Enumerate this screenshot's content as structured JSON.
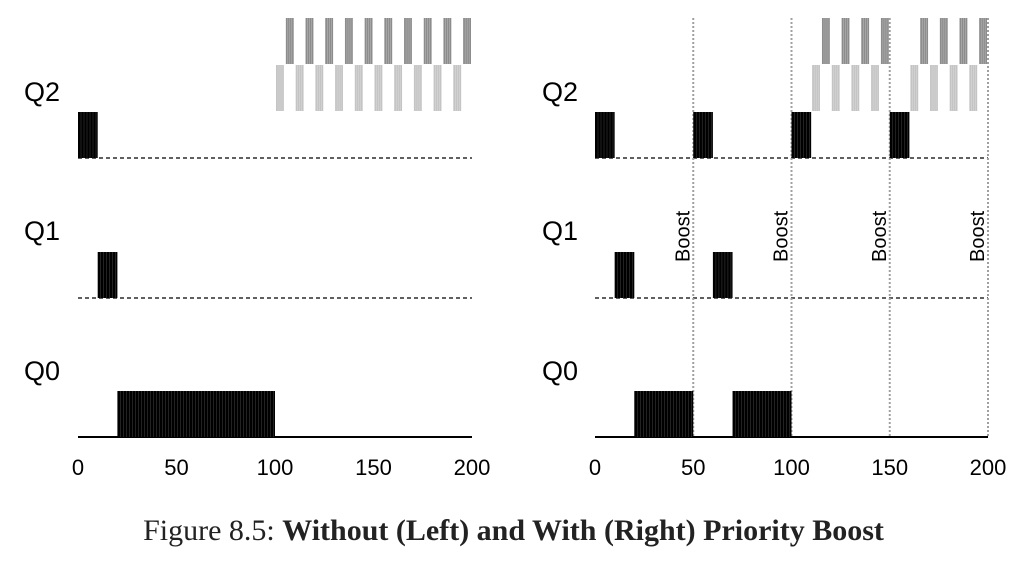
{
  "caption": {
    "prefix": "Figure 8.5: ",
    "title": "Without (Left) and With (Right) Priority Boost"
  },
  "queues": [
    "Q2",
    "Q1",
    "Q0"
  ],
  "axis": {
    "ticks": [
      0,
      50,
      100,
      150,
      200
    ],
    "range": [
      0,
      200
    ]
  },
  "boost_label": "Boost",
  "colors": {
    "long_job": "#000000",
    "dark_gray": "#8c8c8c",
    "light_gray": "#c4c4c4",
    "boost_line": "#a0a0a0"
  },
  "panels": [
    {
      "id": "left",
      "boosts": [],
      "long_job": [
        {
          "queue": "Q2",
          "start": 0,
          "end": 10
        },
        {
          "queue": "Q1",
          "start": 10,
          "end": 20
        },
        {
          "queue": "Q0",
          "start": 20,
          "end": 100
        }
      ],
      "short_jobs": {
        "start": 100,
        "end": 200,
        "slice": 5
      }
    },
    {
      "id": "right",
      "boosts": [
        50,
        100,
        150,
        200
      ],
      "long_job": [
        {
          "queue": "Q2",
          "start": 0,
          "end": 10
        },
        {
          "queue": "Q1",
          "start": 10,
          "end": 20
        },
        {
          "queue": "Q0",
          "start": 20,
          "end": 50
        },
        {
          "queue": "Q2",
          "start": 50,
          "end": 60
        },
        {
          "queue": "Q1",
          "start": 60,
          "end": 70
        },
        {
          "queue": "Q0",
          "start": 70,
          "end": 100
        },
        {
          "queue": "Q2",
          "start": 100,
          "end": 110
        },
        {
          "queue": "Q2",
          "start": 150,
          "end": 160
        }
      ],
      "short_jobs": {
        "segments": [
          [
            110,
            150
          ],
          [
            160,
            200
          ]
        ],
        "slice": 5
      }
    }
  ]
}
